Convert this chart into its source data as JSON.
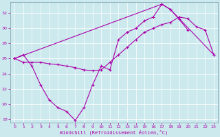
{
  "xlabel": "Windchill (Refroidissement éolien,°C)",
  "bg_color": "#cce9ed",
  "line_color": "#aa00aa",
  "grid_color": "#b0d8de",
  "xlim": [
    -0.5,
    23.5
  ],
  "ylim": [
    17.5,
    33.5
  ],
  "xticks": [
    0,
    1,
    2,
    3,
    4,
    5,
    6,
    7,
    8,
    9,
    10,
    11,
    12,
    13,
    14,
    15,
    16,
    17,
    18,
    19,
    20,
    21,
    22,
    23
  ],
  "yticks": [
    18,
    20,
    22,
    24,
    26,
    28,
    30,
    32
  ],
  "series1_x": [
    0,
    1,
    2,
    3,
    4,
    5,
    6,
    7,
    8,
    9,
    10,
    11,
    12,
    13,
    14,
    15,
    16,
    17,
    18,
    19,
    20
  ],
  "series1_y": [
    26.0,
    26.5,
    25.0,
    22.5,
    20.5,
    19.5,
    19.0,
    17.8,
    19.5,
    22.5,
    25.0,
    24.5,
    28.5,
    29.5,
    30.0,
    31.0,
    31.5,
    33.2,
    32.5,
    31.2,
    29.8
  ],
  "series2_x": [
    0,
    1,
    2,
    3,
    4,
    5,
    6,
    7,
    8,
    9,
    10,
    11,
    12,
    13,
    14,
    15,
    16,
    17,
    18,
    19,
    20,
    21,
    22,
    23
  ],
  "series2_y": [
    26.0,
    25.5,
    25.5,
    25.5,
    25.3,
    25.2,
    25.0,
    24.8,
    24.5,
    24.4,
    24.5,
    25.5,
    26.5,
    27.5,
    28.5,
    29.5,
    30.0,
    30.5,
    30.8,
    31.5,
    31.3,
    30.2,
    29.8,
    26.5
  ],
  "series3_x": [
    0,
    17,
    18,
    23
  ],
  "series3_y": [
    26.0,
    33.2,
    32.5,
    26.5
  ]
}
